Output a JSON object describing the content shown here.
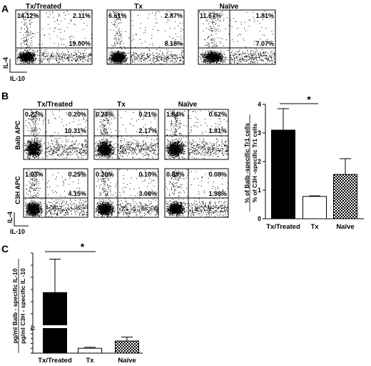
{
  "panels": {
    "A": {
      "letter": "A",
      "plots": [
        {
          "title": "Tx/Treated",
          "ul": "14.12%",
          "ur": "2.11%",
          "lr": "19.00%"
        },
        {
          "title": "Tx",
          "ul": "6.61%",
          "ur": "2.87%",
          "lr": "8.18%"
        },
        {
          "title": "Naïve",
          "ul": "11.67%",
          "ur": "1.81%",
          "lr": "7.07%"
        }
      ],
      "ylabel": "IL-4",
      "xlabel": "IL-10"
    },
    "B": {
      "letter": "B",
      "col_titles": [
        "Tx/Treated",
        "Tx",
        "Naïve"
      ],
      "row_labels": [
        "Balb APC",
        "C3H APC"
      ],
      "rows": [
        [
          {
            "ul": "0.22%",
            "ur": "0.20%",
            "lr": "10.31%"
          },
          {
            "ul": "0.23%",
            "ur": "0.21%",
            "lr": "2.17%"
          },
          {
            "ul": "1.84%",
            "ur": "0.62%",
            "lr": "1.81%"
          }
        ],
        [
          {
            "ul": "1.03%",
            "ur": "0.25%",
            "lr": "4.15%"
          },
          {
            "ul": "0.20%",
            "ur": "0.10%",
            "lr": "3.08%"
          },
          {
            "ul": "0.88%",
            "ur": "0.08%",
            "lr": "1.98%"
          }
        ]
      ],
      "ylabel": "IL-4",
      "xlabel": "IL-10"
    },
    "C": {
      "letter": "C"
    }
  },
  "chart_data": [
    {
      "type": "bar",
      "panel": "B",
      "categories": [
        "Tx/Treated",
        "Tx",
        "Naïve"
      ],
      "values": [
        3.1,
        0.78,
        1.55
      ],
      "errors": [
        0.75,
        0.02,
        0.55
      ],
      "fills": [
        "solid-black",
        "white",
        "checkered"
      ],
      "ylabel_line1": "% of Balb -specific Tr1 cells",
      "ylabel_line2": "% of C3H -specific Tr1 cells",
      "ylim": [
        0,
        4
      ],
      "yticks": [
        "0",
        "1",
        "2",
        "3",
        "4"
      ],
      "significance": "*",
      "significance_between": [
        "Tx/Treated",
        "Tx"
      ]
    },
    {
      "type": "bar",
      "panel": "C",
      "categories": [
        "Tx/Treated",
        "Tx",
        "Naïve"
      ],
      "values": [
        75,
        1,
        2.5
      ],
      "errors": [
        55,
        0.2,
        0.8
      ],
      "fills": [
        "solid-black",
        "white",
        "checkered"
      ],
      "ylabel_line1": "pg/ml Balb - specific IL-10",
      "ylabel_line2": "pg/ml C3H - specific IL -10",
      "axis_break": [
        5,
        20
      ],
      "yticks_low": [
        "0",
        "1",
        "2",
        "3",
        "4",
        "5"
      ],
      "yticks_high": [
        "20",
        "40",
        "60",
        "80",
        "100",
        "120",
        "140"
      ],
      "significance": "*",
      "significance_between": [
        "Tx/Treated",
        "Tx"
      ]
    }
  ]
}
